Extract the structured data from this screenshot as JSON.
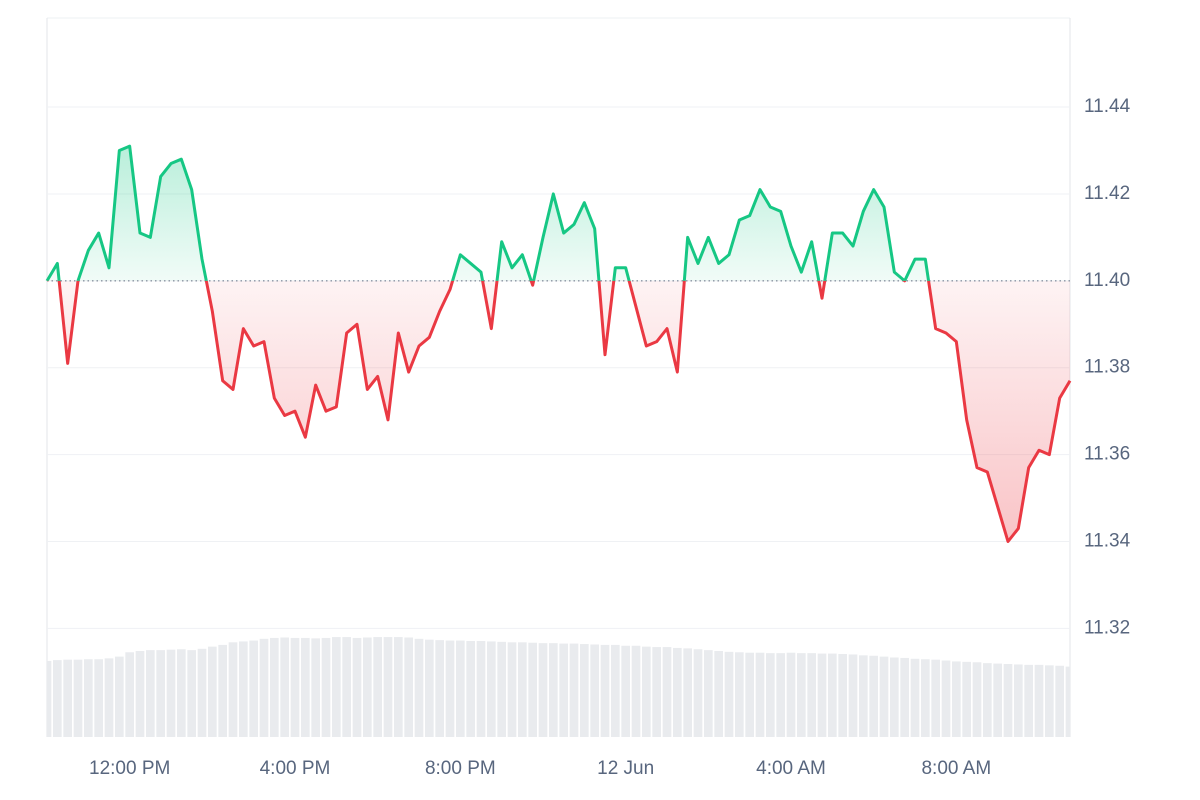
{
  "chart_data": {
    "type": "line",
    "categories": [
      null,
      null,
      null,
      null,
      null,
      null,
      null,
      null,
      "12:00 PM",
      null,
      null,
      null,
      null,
      null,
      null,
      null,
      null,
      null,
      null,
      null,
      null,
      null,
      null,
      null,
      "4:00 PM",
      null,
      null,
      null,
      null,
      null,
      null,
      null,
      null,
      null,
      null,
      null,
      null,
      null,
      null,
      null,
      "8:00 PM",
      null,
      null,
      null,
      null,
      null,
      null,
      null,
      null,
      null,
      null,
      null,
      null,
      null,
      null,
      null,
      "12 Jun",
      null,
      null,
      null,
      null,
      null,
      null,
      null,
      null,
      null,
      null,
      null,
      null,
      null,
      null,
      null,
      "4:00 AM",
      null,
      null,
      null,
      null,
      null,
      null,
      null,
      null,
      null,
      null,
      null,
      null,
      null,
      null,
      null,
      "8:00 AM",
      null,
      null,
      null,
      null,
      null,
      null,
      null,
      null,
      null,
      null,
      null
    ],
    "values": [
      11.4,
      11.404,
      11.381,
      11.4,
      11.407,
      11.411,
      11.403,
      11.43,
      11.431,
      11.411,
      11.41,
      11.424,
      11.427,
      11.428,
      11.421,
      11.405,
      11.393,
      11.377,
      11.375,
      11.389,
      11.385,
      11.386,
      11.373,
      11.369,
      11.37,
      11.364,
      11.376,
      11.37,
      11.371,
      11.388,
      11.39,
      11.375,
      11.378,
      11.368,
      11.388,
      11.379,
      11.385,
      11.387,
      11.393,
      11.398,
      11.406,
      11.404,
      11.402,
      11.389,
      11.409,
      11.403,
      11.406,
      11.399,
      11.41,
      11.42,
      11.411,
      11.413,
      11.418,
      11.412,
      11.383,
      11.403,
      11.403,
      11.394,
      11.385,
      11.386,
      11.389,
      11.379,
      11.41,
      11.404,
      11.41,
      11.404,
      11.406,
      11.414,
      11.415,
      11.421,
      11.417,
      11.416,
      11.408,
      11.402,
      11.409,
      11.396,
      11.411,
      11.411,
      11.408,
      11.416,
      11.421,
      11.417,
      11.402,
      11.4,
      11.405,
      11.405,
      11.389,
      11.388,
      11.386,
      11.368,
      11.357,
      11.356,
      11.348,
      11.34,
      11.343,
      11.357,
      11.361,
      11.36,
      11.373,
      11.377
    ],
    "volume": [
      11.3125,
      11.3127,
      11.3128,
      11.3128,
      11.3129,
      11.3129,
      11.3131,
      11.3135,
      11.3145,
      11.3148,
      11.315,
      11.315,
      11.3151,
      11.3152,
      11.315,
      11.3153,
      11.3158,
      11.3162,
      11.3168,
      11.317,
      11.3172,
      11.3176,
      11.3178,
      11.3179,
      11.3178,
      11.3178,
      11.3177,
      11.3178,
      11.318,
      11.318,
      11.3178,
      11.3179,
      11.318,
      11.318,
      11.318,
      11.3179,
      11.3176,
      11.3174,
      11.3173,
      11.3172,
      11.3172,
      11.3171,
      11.3171,
      11.317,
      11.3169,
      11.3168,
      11.3168,
      11.3167,
      11.3166,
      11.3166,
      11.3165,
      11.3165,
      11.3164,
      11.3163,
      11.3162,
      11.3162,
      11.316,
      11.316,
      11.3158,
      11.3157,
      11.3157,
      11.3155,
      11.3154,
      11.3152,
      11.315,
      11.3148,
      11.3146,
      11.3145,
      11.3144,
      11.3144,
      11.3143,
      11.3143,
      11.3144,
      11.3143,
      11.3143,
      11.3142,
      11.3142,
      11.3141,
      11.314,
      11.3138,
      11.3137,
      11.3135,
      11.3133,
      11.3132,
      11.313,
      11.3129,
      11.3128,
      11.3126,
      11.3124,
      11.3123,
      11.3122,
      11.312,
      11.3119,
      11.3118,
      11.3117,
      11.3116,
      11.3116,
      11.3115,
      11.3114,
      11.3112
    ],
    "baseline": 11.4,
    "up_color": "#16c784",
    "down_color": "#ea3943",
    "volume_color": "#e9ebee",
    "ylim": [
      11.295,
      11.4605
    ],
    "yticks": [
      11.32,
      11.34,
      11.36,
      11.38,
      {
        "value": 11.4,
        "label": "11.40"
      },
      11.42,
      11.44
    ],
    "grid": true
  }
}
